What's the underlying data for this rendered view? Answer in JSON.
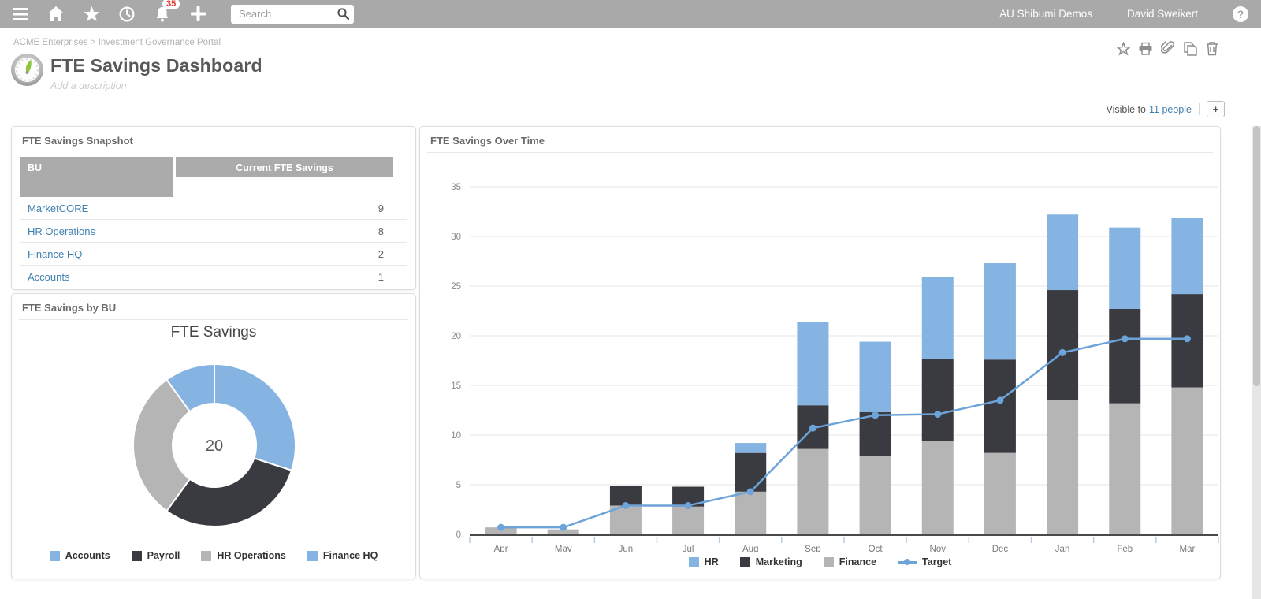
{
  "topbar": {
    "notification_count": "35",
    "search_placeholder": "Search",
    "account": "AU Shibumi Demos",
    "user": "David Sweikert",
    "help_glyph": "?",
    "icons": [
      "menu-icon",
      "home-icon",
      "favorites-icon",
      "recent-icon",
      "notifications-icon",
      "create-icon",
      "search-icon",
      "help-icon"
    ]
  },
  "header": {
    "breadcrumb": "ACME Enterprises > Investment Governance Portal",
    "title": "FTE Savings Dashboard",
    "description_placeholder": "Add a description",
    "visible_to_label": "Visible to",
    "visible_to_link": "11 people",
    "add_button": "+",
    "action_icons": [
      "favorite-icon",
      "print-icon",
      "attachment-icon",
      "copy-icon",
      "delete-icon"
    ]
  },
  "snapshot": {
    "panel_title": "FTE Savings Snapshot",
    "columns": [
      "BU",
      "Current FTE Savings"
    ],
    "rows": [
      {
        "bu": "MarketCORE",
        "value": "9"
      },
      {
        "bu": "HR Operations",
        "value": "8"
      },
      {
        "bu": "Finance HQ",
        "value": "2"
      },
      {
        "bu": "Accounts",
        "value": "1"
      }
    ]
  },
  "by_bu": {
    "panel_title": "FTE Savings by BU"
  },
  "over_time": {
    "panel_title": "FTE Savings Over Time"
  },
  "colors": {
    "accent_blue": "#85b3e2",
    "dark": "#3a3a41",
    "gray": "#b5b5b5",
    "target_line": "#6ca4d9",
    "link": "#4181b0",
    "topbar": "#a9a9a9"
  },
  "chart_data": [
    {
      "id": "fte-savings-by-bu",
      "type": "pie",
      "donut": true,
      "title": "FTE Savings",
      "center_label": "20",
      "slices": [
        {
          "label": "Accounts",
          "value": 6,
          "color": "#85b3e2"
        },
        {
          "label": "Payroll",
          "value": 6,
          "color": "#3a3a41"
        },
        {
          "label": "HR Operations",
          "value": 6,
          "color": "#b5b5b5"
        },
        {
          "label": "Finance HQ",
          "value": 2,
          "color": "#85b3e2"
        }
      ],
      "legend_position": "bottom"
    },
    {
      "id": "fte-savings-over-time",
      "type": "bar",
      "stacked": true,
      "categories": [
        "Apr",
        "May",
        "Jun",
        "Jul",
        "Aug",
        "Sep",
        "Oct",
        "Nov",
        "Dec",
        "Jan",
        "Feb",
        "Mar"
      ],
      "series": [
        {
          "name": "Finance",
          "kind": "bar",
          "color": "#b5b5b5",
          "values": [
            0.7,
            0.5,
            2.9,
            2.8,
            4.3,
            8.6,
            7.9,
            9.4,
            8.2,
            13.5,
            13.2,
            14.8
          ]
        },
        {
          "name": "Marketing",
          "kind": "bar",
          "color": "#3a3a41",
          "values": [
            0,
            0,
            2.0,
            2.0,
            3.9,
            4.4,
            4.4,
            8.3,
            9.4,
            11.1,
            9.5,
            9.4
          ]
        },
        {
          "name": "HR",
          "kind": "bar",
          "color": "#85b3e2",
          "values": [
            0,
            0,
            0,
            0,
            1.0,
            8.4,
            7.1,
            8.2,
            9.7,
            7.6,
            8.2,
            7.7
          ]
        },
        {
          "name": "Target",
          "kind": "line",
          "color": "#6ca4d9",
          "values": [
            0.7,
            0.7,
            2.9,
            2.9,
            4.3,
            10.7,
            12.0,
            12.1,
            13.5,
            18.3,
            19.7,
            19.7
          ]
        }
      ],
      "ylim": [
        0,
        35
      ],
      "ytick_step": 5,
      "grid": true,
      "legend_order": [
        "HR",
        "Marketing",
        "Finance",
        "Target"
      ],
      "legend_position": "bottom"
    }
  ]
}
